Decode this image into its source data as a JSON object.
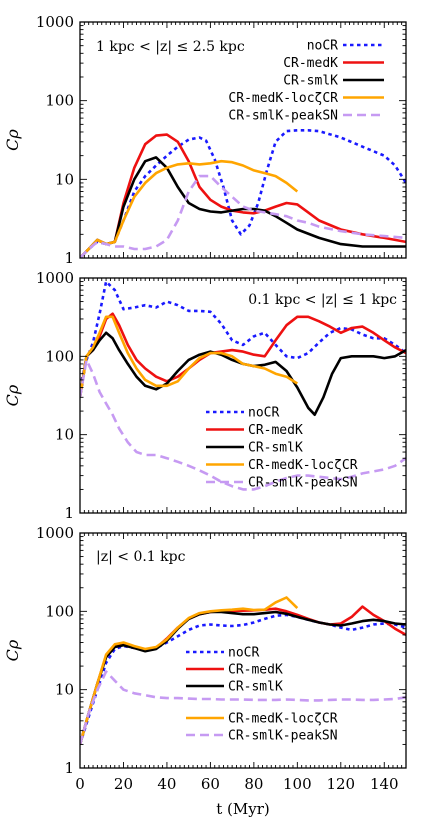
{
  "colors": {
    "noCR": "#1a1aff",
    "CR-medK": "#ee1111",
    "CR-smlK": "#000000",
    "CR-medK-locZeta": "#ffa500",
    "CR-smlK-peakSN": "#c69af2"
  },
  "chart_data": [
    {
      "type": "line",
      "panel_label": "1 kpc < |z| ≤ 2.5 kpc",
      "ylabel": "Cρ",
      "xlabel": "",
      "yscale": "log",
      "ylim": [
        1,
        1000
      ],
      "xlim": [
        0,
        150
      ],
      "yticks": [
        "1",
        "10",
        "100",
        "1000"
      ],
      "xticks": [],
      "legend_position": "top-right",
      "series": [
        {
          "name": "noCR",
          "key": "noCR",
          "dash": "dot",
          "x": [
            0,
            4,
            8,
            12,
            16,
            20,
            25,
            30,
            35,
            40,
            45,
            50,
            55,
            58,
            62,
            66,
            70,
            74,
            78,
            82,
            86,
            90,
            95,
            100,
            105,
            110,
            120,
            130,
            140,
            145,
            150
          ],
          "y": [
            1,
            1.3,
            1.6,
            1.5,
            1.6,
            3,
            7,
            11,
            15,
            20,
            26,
            32,
            34,
            31,
            18,
            8,
            3,
            2,
            2.6,
            5,
            13,
            30,
            41,
            42,
            42,
            41,
            34,
            26,
            20,
            15,
            9
          ]
        },
        {
          "name": "CR-medK",
          "key": "CR-medK",
          "dash": "solid",
          "x": [
            0,
            4,
            8,
            12,
            16,
            20,
            25,
            30,
            35,
            40,
            45,
            50,
            55,
            60,
            65,
            70,
            75,
            80,
            85,
            90,
            95,
            100,
            105,
            110,
            120,
            130,
            140,
            150
          ],
          "y": [
            1,
            1.3,
            1.7,
            1.5,
            1.6,
            5,
            14,
            28,
            36,
            37,
            30,
            17,
            8,
            5.5,
            4.5,
            4,
            3.8,
            3.7,
            4,
            4.5,
            5,
            4.8,
            3.8,
            3,
            2.3,
            2,
            1.8,
            1.6
          ]
        },
        {
          "name": "CR-smlK",
          "key": "CR-smlK",
          "dash": "solid",
          "x": [
            0,
            4,
            8,
            12,
            16,
            20,
            25,
            30,
            35,
            40,
            45,
            50,
            55,
            60,
            65,
            70,
            75,
            80,
            85,
            90,
            95,
            100,
            110,
            120,
            130,
            140,
            150
          ],
          "y": [
            1,
            1.3,
            1.7,
            1.5,
            1.6,
            4.5,
            10,
            17,
            19,
            14,
            8,
            5,
            4.2,
            3.9,
            3.8,
            4,
            4.2,
            4.2,
            4,
            3.4,
            2.8,
            2.3,
            1.8,
            1.5,
            1.4,
            1.4,
            1.4
          ]
        },
        {
          "name": "CR-medK-locζCR",
          "key": "CR-medK-locZeta",
          "dash": "solid",
          "x": [
            0,
            4,
            8,
            12,
            16,
            20,
            25,
            30,
            35,
            40,
            45,
            50,
            55,
            60,
            65,
            70,
            75,
            80,
            85,
            90,
            95,
            100
          ],
          "y": [
            1,
            1.3,
            1.7,
            1.5,
            1.6,
            3,
            6,
            9,
            12,
            14,
            15.5,
            16,
            15.5,
            16,
            17,
            16.5,
            15,
            13,
            12,
            11,
            9,
            7
          ]
        },
        {
          "name": "CR-smlK-peakSN",
          "key": "CR-smlK-peakSN",
          "dash": "dash",
          "x": [
            0,
            4,
            8,
            12,
            16,
            20,
            25,
            30,
            35,
            40,
            45,
            50,
            55,
            60,
            65,
            70,
            75,
            80,
            85,
            90,
            95,
            100,
            105,
            110,
            120,
            130,
            140,
            150
          ],
          "y": [
            1,
            1.3,
            1.6,
            1.5,
            1.4,
            1.4,
            1.3,
            1.3,
            1.4,
            1.7,
            3,
            7,
            11,
            11,
            8,
            6,
            4.5,
            4,
            3.8,
            3.6,
            3.4,
            3,
            2.8,
            2.5,
            2.2,
            2,
            1.9,
            1.8
          ]
        }
      ]
    },
    {
      "type": "line",
      "panel_label": "0.1 kpc < |z| ≤ 1 kpc",
      "ylabel": "Cρ",
      "xlabel": "",
      "yscale": "log",
      "ylim": [
        1,
        1000
      ],
      "xlim": [
        0,
        150
      ],
      "yticks": [
        "1",
        "10",
        "100",
        "1000"
      ],
      "xticks": [],
      "legend_position": "bottom-right",
      "series": [
        {
          "name": "noCR",
          "key": "noCR",
          "dash": "dot",
          "x": [
            0,
            3,
            6,
            9,
            12,
            16,
            20,
            25,
            30,
            35,
            40,
            45,
            50,
            55,
            60,
            65,
            70,
            75,
            80,
            85,
            90,
            95,
            100,
            105,
            110,
            115,
            120,
            125,
            130,
            135,
            140,
            145,
            150
          ],
          "y": [
            40,
            90,
            150,
            350,
            900,
            700,
            400,
            420,
            450,
            420,
            500,
            450,
            380,
            380,
            370,
            260,
            160,
            140,
            180,
            200,
            140,
            100,
            95,
            110,
            150,
            200,
            230,
            220,
            190,
            170,
            170,
            140,
            110
          ]
        },
        {
          "name": "CR-medK",
          "key": "CR-medK",
          "dash": "solid",
          "x": [
            0,
            3,
            6,
            9,
            12,
            15,
            18,
            22,
            26,
            30,
            35,
            40,
            45,
            50,
            55,
            60,
            65,
            70,
            75,
            80,
            85,
            90,
            95,
            100,
            105,
            110,
            115,
            120,
            125,
            130,
            135,
            140,
            145,
            150
          ],
          "y": [
            30,
            100,
            120,
            180,
            300,
            350,
            250,
            140,
            90,
            70,
            55,
            48,
            55,
            70,
            90,
            110,
            115,
            120,
            115,
            105,
            100,
            160,
            250,
            320,
            320,
            280,
            240,
            200,
            230,
            240,
            200,
            160,
            130,
            110
          ]
        },
        {
          "name": "CR-smlK",
          "key": "CR-smlK",
          "dash": "solid",
          "x": [
            0,
            3,
            6,
            9,
            12,
            15,
            18,
            22,
            26,
            30,
            35,
            40,
            45,
            50,
            55,
            60,
            65,
            70,
            75,
            80,
            85,
            90,
            95,
            100,
            105,
            108,
            112,
            116,
            120,
            125,
            130,
            135,
            140,
            145,
            150
          ],
          "y": [
            30,
            100,
            120,
            160,
            200,
            170,
            120,
            80,
            55,
            42,
            38,
            45,
            65,
            90,
            105,
            115,
            105,
            90,
            80,
            75,
            78,
            85,
            65,
            40,
            22,
            18,
            30,
            60,
            95,
            100,
            100,
            100,
            95,
            100,
            120
          ]
        },
        {
          "name": "CR-medK-locζCR",
          "key": "CR-medK-locZeta",
          "dash": "solid",
          "x": [
            0,
            3,
            6,
            9,
            12,
            15,
            18,
            22,
            26,
            30,
            35,
            40,
            45,
            50,
            55,
            60,
            65,
            70,
            75,
            80,
            85,
            90,
            95,
            100
          ],
          "y": [
            30,
            100,
            130,
            200,
            320,
            320,
            200,
            110,
            70,
            50,
            42,
            42,
            48,
            70,
            95,
            110,
            110,
            100,
            80,
            75,
            70,
            60,
            55,
            45
          ]
        },
        {
          "name": "CR-smlK-peakSN",
          "key": "CR-smlK-peakSN",
          "dash": "dash",
          "x": [
            0,
            3,
            6,
            9,
            12,
            15,
            18,
            22,
            26,
            30,
            35,
            40,
            45,
            50,
            55,
            60,
            65,
            70,
            75,
            80,
            85,
            90,
            95,
            100,
            105,
            110,
            115,
            120,
            125,
            130,
            135,
            140,
            145,
            150
          ],
          "y": [
            30,
            90,
            60,
            35,
            25,
            18,
            12,
            8,
            6,
            5.5,
            5.5,
            5,
            4.5,
            4,
            3.5,
            3,
            2.5,
            2.2,
            2,
            2,
            2.2,
            2.5,
            2.8,
            3,
            3,
            2.9,
            2.8,
            2.7,
            2.9,
            3.2,
            3.4,
            3.6,
            4,
            5
          ]
        }
      ]
    },
    {
      "type": "line",
      "panel_label": "|z| < 0.1 kpc",
      "ylabel": "Cρ",
      "xlabel": "t (Myr)",
      "yscale": "log",
      "ylim": [
        1,
        1000
      ],
      "xlim": [
        0,
        150
      ],
      "yticks": [
        "1",
        "10",
        "100",
        "1000"
      ],
      "xticks": [
        "0",
        "20",
        "40",
        "60",
        "80",
        "100",
        "120",
        "140"
      ],
      "legend_position": "bottom-center",
      "series": [
        {
          "name": "noCR",
          "key": "noCR",
          "dash": "dot",
          "x": [
            0,
            4,
            8,
            12,
            16,
            20,
            25,
            30,
            35,
            40,
            45,
            50,
            55,
            60,
            65,
            70,
            75,
            80,
            85,
            90,
            95,
            100,
            105,
            110,
            115,
            120,
            125,
            130,
            135,
            140,
            145,
            150
          ],
          "y": [
            2,
            4.5,
            10,
            22,
            33,
            36,
            34,
            32,
            34,
            40,
            48,
            58,
            66,
            68,
            66,
            65,
            67,
            72,
            80,
            88,
            90,
            85,
            78,
            72,
            68,
            62,
            58,
            62,
            68,
            70,
            68,
            62
          ]
        },
        {
          "name": "CR-medK",
          "key": "CR-medK",
          "dash": "solid",
          "x": [
            0,
            4,
            8,
            12,
            16,
            20,
            25,
            30,
            35,
            40,
            45,
            50,
            55,
            60,
            65,
            70,
            75,
            80,
            85,
            90,
            95,
            100,
            105,
            110,
            115,
            120,
            125,
            130,
            135,
            140,
            145,
            150
          ],
          "y": [
            2,
            5,
            12,
            27,
            37,
            38,
            34,
            32,
            34,
            45,
            62,
            80,
            92,
            98,
            100,
            102,
            102,
            103,
            105,
            108,
            100,
            90,
            80,
            72,
            68,
            70,
            85,
            115,
            90,
            75,
            60,
            50
          ]
        },
        {
          "name": "CR-smlK",
          "key": "CR-smlK",
          "dash": "solid",
          "x": [
            0,
            4,
            8,
            12,
            16,
            20,
            25,
            30,
            35,
            40,
            45,
            50,
            55,
            60,
            65,
            70,
            75,
            80,
            85,
            90,
            95,
            100,
            105,
            110,
            115,
            120,
            125,
            130,
            135,
            140,
            145,
            150
          ],
          "y": [
            2,
            5,
            12,
            26,
            35,
            37,
            34,
            31,
            33,
            42,
            60,
            80,
            92,
            98,
            98,
            95,
            92,
            92,
            95,
            98,
            93,
            85,
            78,
            72,
            68,
            66,
            70,
            75,
            78,
            75,
            70,
            68
          ]
        },
        {
          "name": "CR-medK-locζCR",
          "key": "CR-medK-locZeta",
          "dash": "solid",
          "x": [
            0,
            4,
            8,
            12,
            16,
            20,
            25,
            30,
            35,
            40,
            45,
            50,
            55,
            60,
            65,
            70,
            75,
            80,
            85,
            90,
            95,
            100
          ],
          "y": [
            2,
            5,
            12,
            28,
            38,
            40,
            36,
            33,
            35,
            44,
            62,
            82,
            95,
            100,
            103,
            105,
            108,
            104,
            105,
            130,
            150,
            110
          ]
        },
        {
          "name": "CR-smlK-peakSN",
          "key": "CR-smlK-peakSN",
          "dash": "dash",
          "x": [
            0,
            4,
            8,
            12,
            16,
            20,
            25,
            30,
            35,
            40,
            45,
            50,
            55,
            60,
            65,
            70,
            75,
            80,
            85,
            90,
            95,
            100,
            105,
            110,
            115,
            120,
            125,
            130,
            135,
            140,
            145,
            150
          ],
          "y": [
            2,
            5,
            10,
            17,
            13,
            10,
            9,
            8.5,
            8,
            7.8,
            7.8,
            7.7,
            7.6,
            7.6,
            7.5,
            7.5,
            7.5,
            7.4,
            7.4,
            7.4,
            7.5,
            7.4,
            7.3,
            7.3,
            7.4,
            7.5,
            7.5,
            7.4,
            7.4,
            7.5,
            7.6,
            8
          ]
        }
      ]
    }
  ]
}
